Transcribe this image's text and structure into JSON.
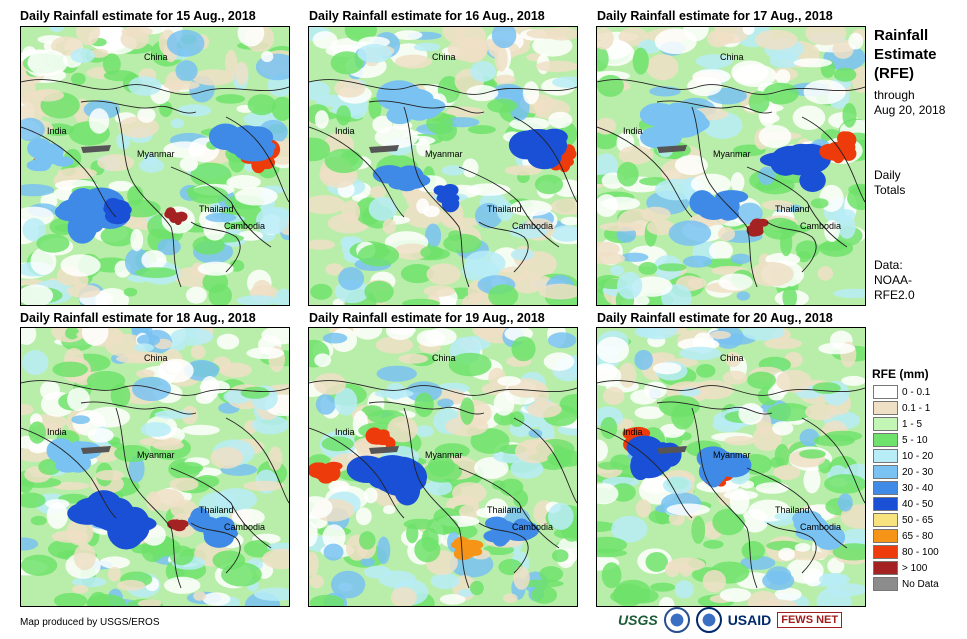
{
  "panels": [
    {
      "title": "Daily Rainfall estimate for 15 Aug., 2018",
      "labels": {
        "china": "China",
        "india": "India",
        "myanmar": "Myanmar",
        "thailand": "Thailand",
        "cambodia": "Cambodia"
      }
    },
    {
      "title": "Daily Rainfall estimate for 16 Aug., 2018",
      "labels": {
        "china": "China",
        "india": "India",
        "myanmar": "Myanmar",
        "thailand": "Thailand",
        "cambodia": "Cambodia"
      }
    },
    {
      "title": "Daily Rainfall estimate for 17 Aug., 2018",
      "labels": {
        "china": "China",
        "india": "India",
        "myanmar": "Myanmar",
        "thailand": "Thailand",
        "cambodia": "Cambodia"
      }
    },
    {
      "title": "Daily Rainfall estimate for 18 Aug., 2018",
      "labels": {
        "china": "China",
        "india": "India",
        "myanmar": "Myanmar",
        "thailand": "Thailand",
        "cambodia": "Cambodia"
      }
    },
    {
      "title": "Daily Rainfall estimate for 19 Aug., 2018",
      "labels": {
        "china": "China",
        "india": "India",
        "myanmar": "Myanmar",
        "thailand": "Thailand",
        "cambodia": "Cambodia"
      }
    },
    {
      "title": "Daily Rainfall estimate for 20 Aug., 2018",
      "labels": {
        "china": "China",
        "india": "India",
        "myanmar": "Myanmar",
        "thailand": "Thailand",
        "cambodia": "Cambodia"
      }
    }
  ],
  "sidebar": {
    "title_line1": "Rainfall",
    "title_line2": "Estimate",
    "title_line3": "(RFE)",
    "through": "through",
    "through_date": "Aug 20, 2018",
    "daily": "Daily",
    "totals": "Totals",
    "data_label": "Data:",
    "data_source1": "NOAA-",
    "data_source2": "RFE2.0"
  },
  "legend": {
    "title": "RFE (mm)",
    "items": [
      {
        "label": "0 - 0.1",
        "color": "#ffffff"
      },
      {
        "label": "0.1 - 1",
        "color": "#eedfc5"
      },
      {
        "label": "1 - 5",
        "color": "#c3f5b5"
      },
      {
        "label": "5 - 10",
        "color": "#6ee26b"
      },
      {
        "label": "10 - 20",
        "color": "#b8ecf7"
      },
      {
        "label": "20 - 30",
        "color": "#79c2f2"
      },
      {
        "label": "30 - 40",
        "color": "#3e8ae6"
      },
      {
        "label": "40 - 50",
        "color": "#1a50d6"
      },
      {
        "label": "50 - 65",
        "color": "#f7e27d"
      },
      {
        "label": "65 - 80",
        "color": "#f59416"
      },
      {
        "label": "80 - 100",
        "color": "#ee3b0b"
      },
      {
        "label": "> 100",
        "color": "#a52222"
      },
      {
        "label": "No Data",
        "color": "#8c8c8c"
      }
    ]
  },
  "credit": "Map produced by USGS/EROS",
  "logos": {
    "usgs": "USGS",
    "usaid": "USAID",
    "fews": "FEWS NET"
  }
}
